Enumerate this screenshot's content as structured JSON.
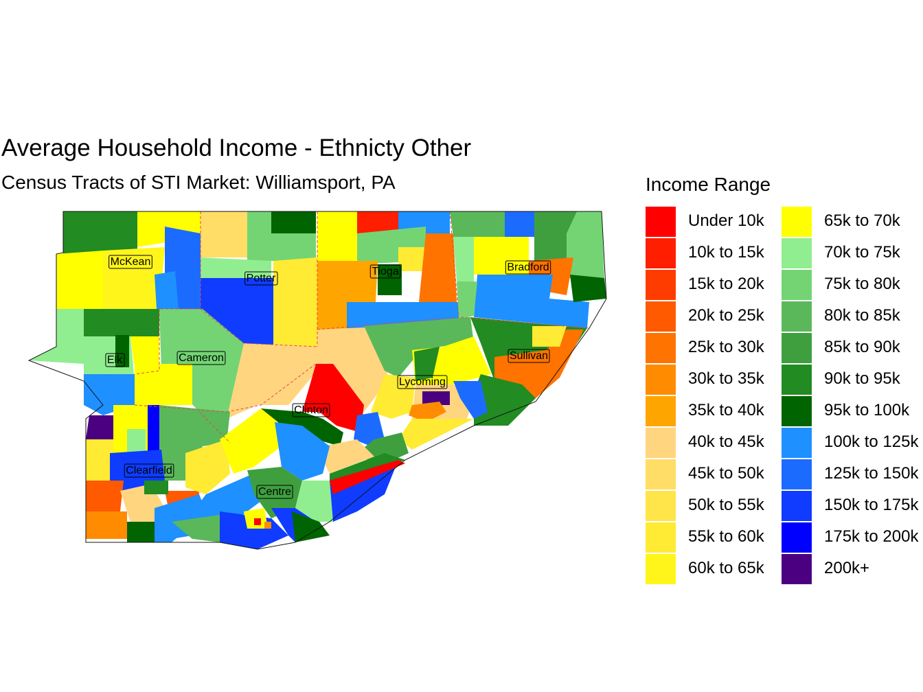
{
  "title": "Average Household Income - Ethnicty Other",
  "subtitle": "Census Tracts of STI Market: Williamsport, PA",
  "legend": {
    "title": "Income Range",
    "items": [
      {
        "label": "Under 10k",
        "color": "#FF0000"
      },
      {
        "label": "10k to 15k",
        "color": "#FF1E00"
      },
      {
        "label": "15k to 20k",
        "color": "#FF3C00"
      },
      {
        "label": "20k to 25k",
        "color": "#FF5A00"
      },
      {
        "label": "25k to 30k",
        "color": "#FF7300"
      },
      {
        "label": "30k to 35k",
        "color": "#FF8C00"
      },
      {
        "label": "35k to 40k",
        "color": "#FFA500"
      },
      {
        "label": "40k to 45k",
        "color": "#FFD580"
      },
      {
        "label": "45k to 50k",
        "color": "#FFDD66"
      },
      {
        "label": "50k to 55k",
        "color": "#FFE44A"
      },
      {
        "label": "55k to 60k",
        "color": "#FFEB33"
      },
      {
        "label": "60k to 65k",
        "color": "#FFF51A"
      },
      {
        "label": "65k to 70k",
        "color": "#FFFF00"
      },
      {
        "label": "70k to 75k",
        "color": "#90EE90"
      },
      {
        "label": "75k to 80k",
        "color": "#74D474"
      },
      {
        "label": "80k to 85k",
        "color": "#5AB85A"
      },
      {
        "label": "85k to 90k",
        "color": "#3F9F3F"
      },
      {
        "label": "90k to 95k",
        "color": "#228B22"
      },
      {
        "label": "95k to 100k",
        "color": "#006400"
      },
      {
        "label": "100k to 125k",
        "color": "#1E90FF"
      },
      {
        "label": "125k to 150k",
        "color": "#1C6BFF"
      },
      {
        "label": "150k to 175k",
        "color": "#0F3CFF"
      },
      {
        "label": "175k to 200k",
        "color": "#0000FF"
      },
      {
        "label": "200k+",
        "color": "#4B0082"
      }
    ]
  },
  "counties": [
    "McKean",
    "Potter",
    "Tioga",
    "Bradford",
    "Elk",
    "Cameron",
    "Sullivan",
    "Lycoming",
    "Clinton",
    "Clearfield",
    "Centre"
  ]
}
